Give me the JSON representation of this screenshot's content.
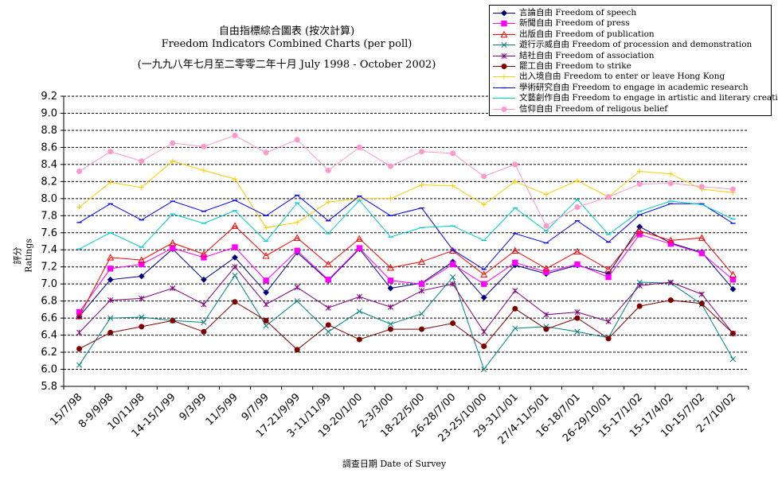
{
  "chart_data": {
    "type": "line",
    "title": "自由指標綜合圖表 (按次計算)",
    "subtitle": "Freedom Indicators Combined Charts (per poll)",
    "subtitle2": "(一九九八年七月至二零零二年十月 July 1998 - October 2002)",
    "xlabel": "調查日期 Date of Survey",
    "ylabel": "評分 Ratings",
    "ylim": [
      5.8,
      9.2
    ],
    "yticks": [
      "5.8",
      "6.0",
      "6.2",
      "6.4",
      "6.6",
      "6.8",
      "7.0",
      "7.2",
      "7.4",
      "7.6",
      "7.8",
      "8.0",
      "8.2",
      "8.4",
      "8.6",
      "8.8",
      "9.0",
      "9.2"
    ],
    "grid": "horizontal dashed",
    "legend_position": "top-right",
    "categories": [
      "15/7/98",
      "8-9/9/98",
      "10/11/98",
      "14-15/1/99",
      "9/3/99",
      "11/5/99",
      "9/7/99",
      "17-21/9/99",
      "3-11/11/99",
      "19-20/1/00",
      "2-3/3/00",
      "18-22/5/00",
      "26-28/7/00",
      "23-25/10/00",
      "29-31/1/01",
      "27/4-11/5/01",
      "16-18/7/01",
      "26-29/10/01",
      "15-17/1/02",
      "15-17/4/02",
      "10-15/7/02",
      "2-7/10/02"
    ],
    "x_tick_labels": [
      "15/7/98",
      "8-9/9/98",
      "10/11/98",
      "14-15/1/99",
      "9/3/99",
      "11/5/99",
      "9/7/99",
      "17-21/9/99",
      "3-11/11/99",
      "19-20/1/00",
      "2-3/3/00",
      "18-22/5/00",
      "26-28/7/00",
      "23-25/10/00",
      "29-31/1/01",
      "27/4-11/5/01",
      "16-18/7/01",
      "26-29/10/01",
      "15-17/1/02",
      "15-17/4/02",
      "10-15/7/02",
      "2-7/10/02"
    ],
    "series": [
      {
        "name": "言論自由 Freedom of speech",
        "color": "#000080",
        "marker": "diamond",
        "values": [
          6.62,
          7.05,
          7.09,
          7.41,
          7.05,
          7.31,
          6.9,
          7.37,
          7.04,
          7.41,
          6.95,
          7.01,
          7.26,
          6.84,
          7.22,
          7.12,
          7.22,
          7.12,
          7.67,
          7.48,
          7.37,
          6.94
        ]
      },
      {
        "name": "新聞自由 Freedom of press",
        "color": "#ff00ff",
        "marker": "square",
        "values": [
          6.67,
          7.18,
          7.23,
          7.42,
          7.31,
          7.43,
          7.04,
          7.39,
          7.05,
          7.42,
          7.04,
          7.0,
          7.23,
          7.0,
          7.25,
          7.14,
          7.23,
          7.08,
          7.58,
          7.47,
          7.36,
          7.05
        ]
      },
      {
        "name": "出版自由 Freedom of publication",
        "color": "#ff0000",
        "marker": "triangle",
        "values": [
          6.62,
          7.31,
          7.28,
          7.48,
          7.35,
          7.68,
          7.33,
          7.54,
          7.23,
          7.53,
          7.19,
          7.26,
          7.39,
          7.11,
          7.39,
          7.18,
          7.38,
          7.17,
          7.62,
          7.51,
          7.54,
          7.11
        ]
      },
      {
        "name": "遊行示威自由 Freedom of procession and demonstration",
        "color": "#008080",
        "marker": "x",
        "values": [
          6.05,
          6.6,
          6.61,
          6.57,
          6.55,
          7.1,
          6.51,
          6.8,
          6.44,
          6.68,
          6.53,
          6.65,
          7.08,
          6.0,
          6.48,
          6.5,
          6.44,
          6.37,
          7.02,
          7.01,
          6.76,
          6.12
        ]
      },
      {
        "name": "結社自由 Freedom of association",
        "color": "#800080",
        "marker": "star",
        "values": [
          6.43,
          6.81,
          6.83,
          6.95,
          6.76,
          7.2,
          6.76,
          6.96,
          6.72,
          6.85,
          6.73,
          6.92,
          7.0,
          6.44,
          6.92,
          6.64,
          6.67,
          6.56,
          6.98,
          7.02,
          6.88,
          6.42
        ]
      },
      {
        "name": "罷工自由 Freedom to strike",
        "color": "#800000",
        "marker": "circle",
        "values": [
          6.24,
          6.43,
          6.5,
          6.57,
          6.44,
          6.79,
          6.57,
          6.23,
          6.52,
          6.35,
          6.47,
          6.47,
          6.54,
          6.27,
          6.71,
          6.47,
          6.6,
          6.36,
          6.74,
          6.81,
          6.77,
          6.42
        ]
      },
      {
        "name": "出入境自由 Freedom to enter or leave Hong Kong",
        "color": "#ffcc00",
        "marker": "plus",
        "values": [
          7.9,
          8.19,
          8.13,
          8.44,
          8.33,
          8.23,
          7.66,
          7.72,
          7.96,
          8.0,
          8.0,
          8.16,
          8.15,
          7.93,
          8.2,
          8.05,
          8.21,
          8.02,
          8.32,
          8.29,
          8.11,
          8.07
        ]
      },
      {
        "name": "學術研究自由 Freedom to engage in academic research",
        "color": "#0000ff",
        "marker": "dash",
        "values": [
          7.72,
          7.94,
          7.75,
          7.97,
          7.85,
          7.98,
          7.8,
          8.04,
          7.74,
          8.03,
          7.8,
          7.89,
          7.4,
          7.17,
          7.59,
          7.48,
          7.74,
          7.49,
          7.81,
          7.94,
          7.94,
          7.71
        ]
      },
      {
        "name": "文藝創作自由 Freedom to engage in artistic and literary creation",
        "color": "#00cccc",
        "marker": "dash",
        "values": [
          7.41,
          7.6,
          7.43,
          7.82,
          7.71,
          7.86,
          7.5,
          7.95,
          7.59,
          7.98,
          7.55,
          7.66,
          7.68,
          7.51,
          7.89,
          7.62,
          7.99,
          7.58,
          7.85,
          7.97,
          7.93,
          7.76
        ]
      },
      {
        "name": "信仰自由 Freedom of religous belief",
        "color": "#ff99cc",
        "marker": "circle",
        "values": [
          8.32,
          8.55,
          8.44,
          8.65,
          8.61,
          8.74,
          8.54,
          8.69,
          8.33,
          8.6,
          8.38,
          8.55,
          8.53,
          8.26,
          8.4,
          7.68,
          7.9,
          8.02,
          8.17,
          8.18,
          8.14,
          8.11
        ]
      }
    ]
  }
}
